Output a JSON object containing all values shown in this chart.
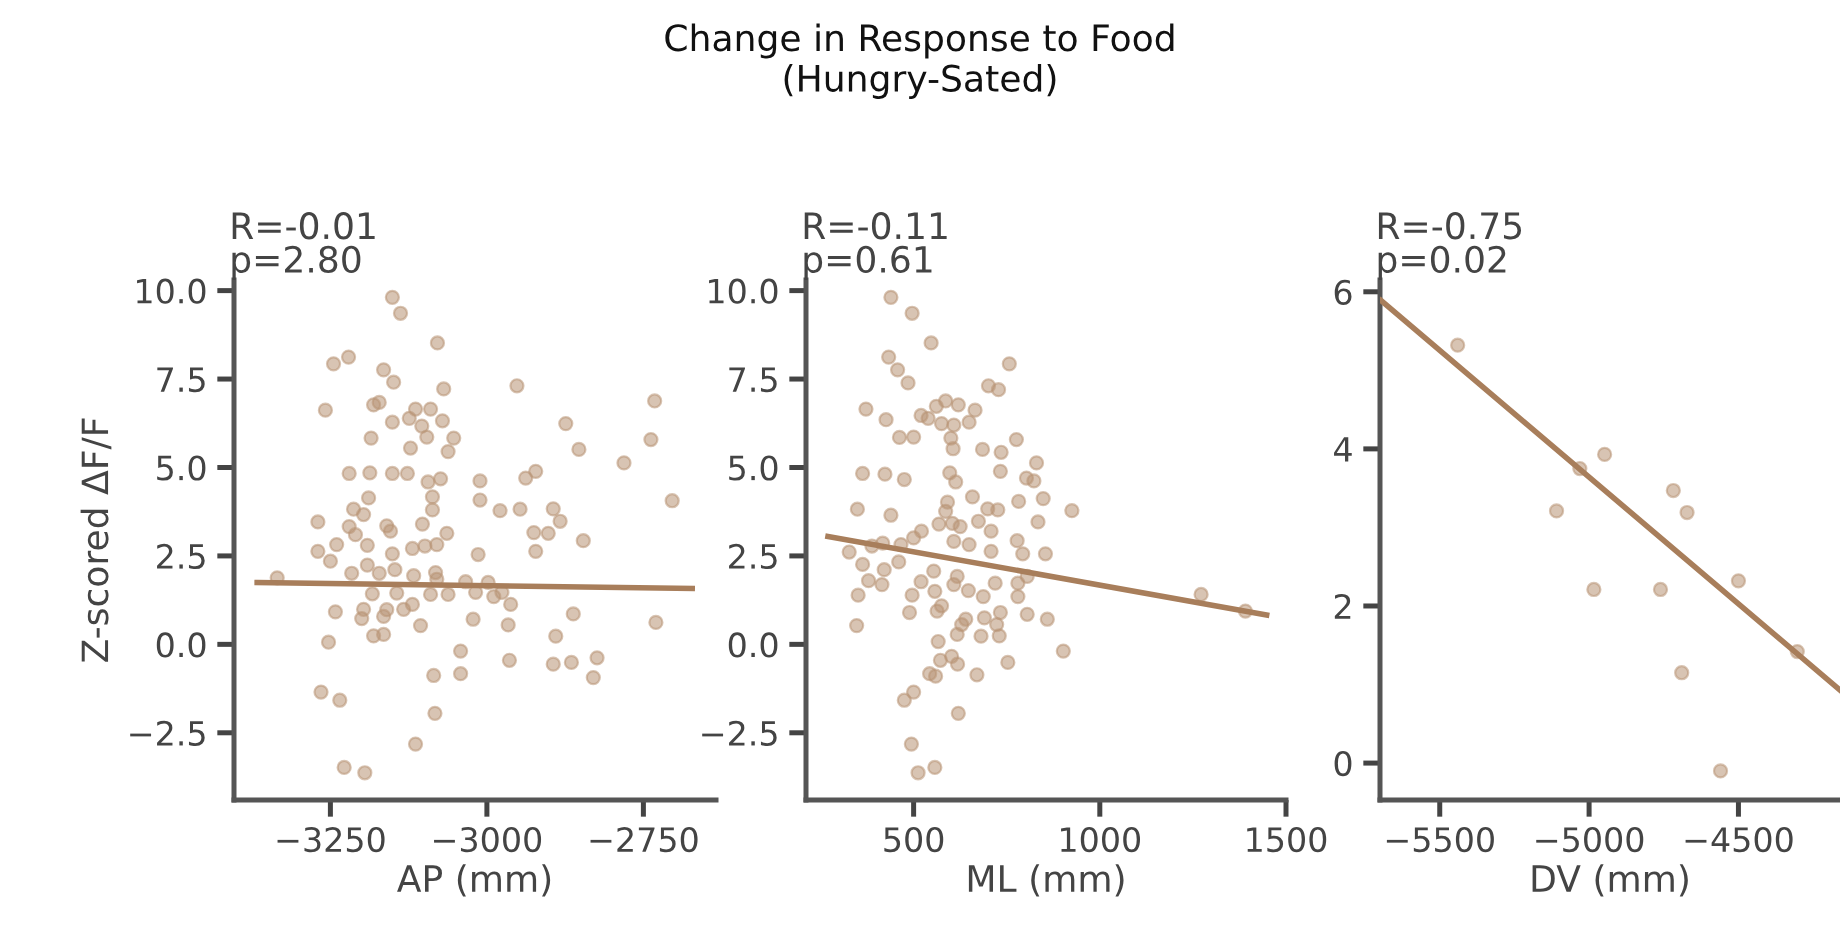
{
  "chart_data": [
    {
      "type": "scatter",
      "subtitle": "R=-0.01\np=2.80",
      "xlabel": "AP (mm)",
      "ylabel": "Z-scored ΔF/F",
      "marker": "circle",
      "grid": false,
      "legend": false,
      "xlim": [
        -3404,
        -2634
      ],
      "xticks": [
        {
          "value": -3250,
          "label": "−3250"
        },
        {
          "value": -3000,
          "label": "−3000"
        },
        {
          "value": -2750,
          "label": "−2750"
        }
      ],
      "ylim": [
        -4.4,
        10.3
      ],
      "yticks": [
        {
          "value": -2.5,
          "label": "−2.5"
        },
        {
          "value": 0,
          "label": "0.0"
        },
        {
          "value": 2.5,
          "label": "2.5"
        },
        {
          "value": 5,
          "label": "5.0"
        },
        {
          "value": 7.5,
          "label": "7.5"
        },
        {
          "value": 10,
          "label": "10.0"
        }
      ],
      "series": [
        {
          "color": "#b89474",
          "x": [
            -3151,
            -3138,
            -3079,
            -3245,
            -3221,
            -3165,
            -3149,
            -3069,
            -2952,
            -2732,
            -3258,
            -3181,
            -3172,
            -3114,
            -3090,
            -3124,
            -3104,
            -3071,
            -3151,
            -2874,
            -3185,
            -3096,
            -3053,
            -2738,
            -3122,
            -3062,
            -2853,
            -2781,
            -3220,
            -3187,
            -3151,
            -3127,
            -3094,
            -3074,
            -3011,
            -2938,
            -2922,
            -3189,
            -3087,
            -3011,
            -2704,
            -3213,
            -3197,
            -3087,
            -2979,
            -2947,
            -2894,
            -3270,
            -3220,
            -3210,
            -3160,
            -3154,
            -3103,
            -3064,
            -2925,
            -2902,
            -2883,
            -2846,
            -3240,
            -3191,
            -3119,
            -3099,
            -3080,
            -3270,
            -3151,
            -3014,
            -2922,
            -3250,
            -3191,
            -3172,
            -3147,
            -3335,
            -3216,
            -3117,
            -3082,
            -3080,
            -3034,
            -2998,
            -3183,
            -3144,
            -3090,
            -3062,
            -3018,
            -2989,
            -2976,
            -3242,
            -3197,
            -3160,
            -3133,
            -3119,
            -2962,
            -2862,
            -3200,
            -3165,
            -3022,
            -3106,
            -2966,
            -2730,
            -3165,
            -3181,
            -2890,
            -3253,
            -3042,
            -2964,
            -2894,
            -2865,
            -2824,
            -2830,
            -3042,
            -3085,
            -3265,
            -3235,
            -3083,
            -3114,
            -3228,
            -3195
          ],
          "values": [
            9.81,
            9.36,
            8.52,
            7.93,
            8.12,
            7.76,
            7.41,
            7.22,
            7.31,
            6.88,
            6.62,
            6.77,
            6.84,
            6.65,
            6.65,
            6.39,
            6.17,
            6.32,
            6.28,
            6.24,
            5.83,
            5.86,
            5.83,
            5.79,
            5.55,
            5.45,
            5.51,
            5.13,
            4.83,
            4.85,
            4.83,
            4.83,
            4.59,
            4.68,
            4.62,
            4.7,
            4.89,
            4.14,
            4.17,
            4.08,
            4.06,
            3.82,
            3.67,
            3.8,
            3.78,
            3.82,
            3.83,
            3.46,
            3.33,
            3.1,
            3.35,
            3.2,
            3.4,
            3.14,
            3.16,
            3.14,
            3.48,
            2.93,
            2.82,
            2.8,
            2.71,
            2.78,
            2.82,
            2.63,
            2.56,
            2.54,
            2.63,
            2.35,
            2.24,
            2.01,
            2.11,
            1.88,
            2.01,
            1.94,
            2.03,
            1.84,
            1.77,
            1.75,
            1.43,
            1.45,
            1.41,
            1.41,
            1.47,
            1.35,
            1.47,
            0.92,
            0.99,
            0.98,
            0.99,
            1.13,
            1.13,
            0.86,
            0.73,
            0.79,
            0.71,
            0.53,
            0.55,
            0.62,
            0.28,
            0.24,
            0.23,
            0.06,
            -0.19,
            -0.45,
            -0.56,
            -0.51,
            -0.38,
            -0.94,
            -0.83,
            -0.88,
            -1.35,
            -1.58,
            -1.95,
            -2.82,
            -3.48,
            -3.63
          ]
        },
        {
          "type": "line",
          "marker": "none",
          "color": "#a87e5b",
          "x": [
            -3367,
            -2672
          ],
          "values": [
            1.75,
            1.58
          ]
        }
      ]
    },
    {
      "type": "scatter",
      "title": "Change in Response to Food\n(Hungry-Sated)",
      "subtitle": "R=-0.11\np=0.61",
      "xlabel": "ML (mm)",
      "marker": "circle",
      "grid": false,
      "legend": false,
      "xlim": [
        211,
        1500
      ],
      "xticks": [
        500,
        1000,
        1500
      ],
      "ylim": [
        -4.4,
        10.3
      ],
      "yticks": [
        {
          "value": -2.5,
          "label": "−2.5"
        },
        {
          "value": 0,
          "label": "0.0"
        },
        {
          "value": 2.5,
          "label": "2.5"
        },
        {
          "value": 5,
          "label": "5.0"
        },
        {
          "value": 7.5,
          "label": "7.5"
        },
        {
          "value": 10,
          "label": "10.0"
        }
      ],
      "series": [
        {
          "color": "#b89474",
          "x": [
            439,
            496,
            547,
            433,
            457,
            485,
            757,
            701,
            728,
            372,
            426,
            520,
            539,
            561,
            586,
            620,
            665,
            649,
            575,
            608,
            462,
            500,
            600,
            606,
            776,
            685,
            735,
            830,
            363,
            423,
            475,
            597,
            613,
            733,
            803,
            823,
            848,
            658,
            782,
            349,
            439,
            591,
            586,
            699,
            726,
            925,
            834,
            521,
            568,
            604,
            625,
            674,
            708,
            778,
            327,
            388,
            417,
            466,
            500,
            608,
            649,
            708,
            793,
            854,
            363,
            421,
            460,
            554,
            617,
            379,
            415,
            520,
            608,
            719,
            780,
            805,
            351,
            496,
            557,
            647,
            687,
            780,
            1272,
            1391,
            489,
            563,
            575,
            733,
            805,
            859,
            640,
            690,
            723,
            347,
            629,
            617,
            681,
            730,
            566,
            902,
            572,
            602,
            618,
            753,
            543,
            559,
            670,
            500,
            475,
            620,
            494,
            512,
            557
          ],
          "values": [
            9.81,
            9.36,
            8.52,
            8.12,
            7.76,
            7.39,
            7.93,
            7.31,
            7.2,
            6.65,
            6.35,
            6.47,
            6.39,
            6.73,
            6.88,
            6.77,
            6.62,
            6.28,
            6.24,
            6.2,
            5.85,
            5.86,
            5.83,
            5.53,
            5.79,
            5.51,
            5.43,
            5.13,
            4.83,
            4.81,
            4.66,
            4.85,
            4.59,
            4.89,
            4.7,
            4.62,
            4.12,
            4.17,
            4.04,
            3.82,
            3.65,
            4.02,
            3.76,
            3.83,
            3.8,
            3.78,
            3.46,
            3.2,
            3.4,
            3.42,
            3.33,
            3.48,
            3.2,
            2.93,
            2.61,
            2.78,
            2.86,
            2.82,
            3.01,
            2.91,
            2.82,
            2.63,
            2.56,
            2.56,
            2.26,
            2.11,
            2.33,
            2.07,
            1.92,
            1.8,
            1.69,
            1.77,
            1.69,
            1.73,
            1.73,
            1.92,
            1.39,
            1.39,
            1.5,
            1.52,
            1.35,
            1.35,
            1.41,
            0.94,
            0.9,
            0.94,
            1.09,
            0.9,
            0.85,
            0.71,
            0.71,
            0.75,
            0.56,
            0.53,
            0.56,
            0.28,
            0.23,
            0.24,
            0.08,
            -0.19,
            -0.45,
            -0.34,
            -0.56,
            -0.51,
            -0.83,
            -0.9,
            -0.86,
            -1.35,
            -1.58,
            -1.95,
            -2.82,
            -3.63,
            -3.48
          ]
        },
        {
          "type": "line",
          "marker": "none",
          "color": "#a87e5b",
          "x": [
            270,
            1448
          ],
          "values": [
            3.05,
            0.83
          ]
        }
      ]
    },
    {
      "type": "scatter",
      "subtitle": "R=-0.75\np=0.02",
      "xlabel": "DV (mm)",
      "marker": "circle",
      "grid": false,
      "legend": false,
      "xlim": [
        -5700,
        -4160
      ],
      "xticks": [
        {
          "value": -5500,
          "label": "−5500"
        },
        {
          "value": -5000,
          "label": "−5000"
        },
        {
          "value": -4500,
          "label": "−4500"
        }
      ],
      "ylim": [
        -0.47,
        6.15
      ],
      "yticks": [
        0,
        2,
        4,
        6
      ],
      "series": [
        {
          "color": "#b89474",
          "x": [
            -5440,
            -5031,
            -4948,
            -5109,
            -4718,
            -4672,
            -4984,
            -4761,
            -4500,
            -4303,
            -4690,
            -4560
          ],
          "values": [
            5.32,
            3.75,
            3.93,
            3.21,
            3.47,
            3.19,
            2.21,
            2.21,
            2.32,
            1.42,
            1.15,
            -0.1
          ]
        },
        {
          "type": "line",
          "marker": "none",
          "color": "#a87e5b",
          "x": [
            -5697,
            -4160
          ],
          "values": [
            5.89,
            0.93
          ]
        }
      ]
    }
  ]
}
